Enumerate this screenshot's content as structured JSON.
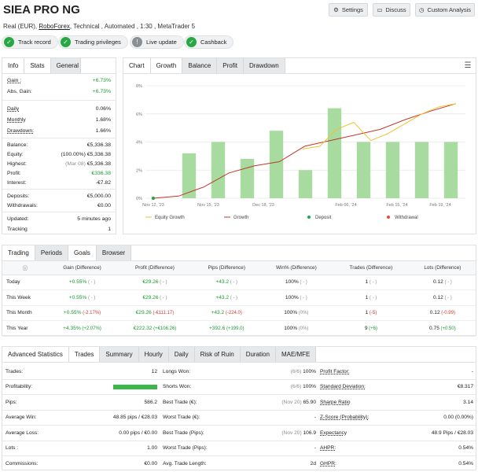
{
  "header": {
    "title": "SIEA PRO NG",
    "sub_pre": "Real (EUR), ",
    "broker": "RoboForex",
    "sub_post": ", Technical , Automated , 1:30 , MetaTrader 5",
    "settings": "Settings",
    "discuss": "Discuss",
    "custom": "Custom Analysis"
  },
  "badges": [
    "Track record",
    "Trading privileges",
    "Live update",
    "Cashback"
  ],
  "info_tabs": [
    "Info",
    "Stats",
    "General"
  ],
  "info": {
    "gain_l": "Gain :",
    "gain_v": "+6.73%",
    "absgain_l": "Abs. Gain:",
    "absgain_v": "+6.73%",
    "daily_l": "Daily",
    "daily_v": "0.06%",
    "monthly_l": "Monthly",
    "monthly_v": "1.68%",
    "drawdown_l": "Drawdown:",
    "drawdown_v": "1.66%",
    "balance_l": "Balance:",
    "balance_v": "€5,336.38",
    "equity_l": "Equity:",
    "equity_p": "(100.00%)",
    "equity_v": "€5,336.38",
    "highest_l": "Highest:",
    "highest_p": "(Mar 08)",
    "highest_v": "€5,336.38",
    "profit_l": "Profit:",
    "profit_v": "€336.38",
    "interest_l": "Interest:",
    "interest_v": "-€7.82",
    "deposits_l": "Deposits:",
    "deposits_v": "€5,000.00",
    "withdrawals_l": "Withdrawals:",
    "withdrawals_v": "€0.00",
    "updated_l": "Updated:",
    "updated_v": "5 minutes ago",
    "tracking_l": "Tracking",
    "tracking_v": "1"
  },
  "chart_tabs": [
    "Chart",
    "Growth",
    "Balance",
    "Profit",
    "Drawdown"
  ],
  "chart_data": {
    "type": "bar",
    "x_ticks": [
      "Nov 12, '23",
      "Nov 15, '23",
      "Dec 18, '23",
      "Feb 06, '24",
      "Feb 15, '24",
      "Feb 19, '24"
    ],
    "y_ticks": [
      "0%",
      "2%",
      "4%",
      "6%",
      "8%"
    ],
    "ylim": [
      0,
      8
    ],
    "bars": [
      0,
      3.2,
      4.0,
      2.8,
      4.8,
      2.0,
      6.4,
      4.0,
      4.0,
      4.0,
      4.0
    ],
    "growth": [
      0,
      0.15,
      0.8,
      1.8,
      2.3,
      2.6,
      3.7,
      4.1,
      4.5,
      4.9,
      5.6,
      6.2,
      6.73
    ],
    "equity_growth": [
      3.5,
      3.7,
      4.9,
      5.4,
      4.1,
      4.6,
      5.3,
      6.0,
      6.5,
      6.73
    ],
    "legend": [
      "Equity Growth",
      "Growth",
      "Deposit",
      "Withdrawal"
    ],
    "colors": {
      "bar": "#a8dba0",
      "growth": "#c0392b",
      "equity": "#f2c230",
      "deposit": "#27a844",
      "withdrawal": "#e74c3c"
    }
  },
  "period_tabs": [
    "Trading",
    "Periods",
    "Goals",
    "Browser"
  ],
  "periods": {
    "headers": [
      "Gain (Difference)",
      "Profit (Difference)",
      "Pips (Difference)",
      "Win% (Difference)",
      "Trades (Difference)",
      "Lots (Difference)"
    ],
    "rows": [
      {
        "name": "Today",
        "gain": "+0.55%",
        "gain_d": "( - )",
        "profit": "€29.26",
        "profit_d": "( - )",
        "pips": "+43.2",
        "pips_d": "( - )",
        "win": "100%",
        "win_d": "( - )",
        "trades": "1",
        "trades_d": "( - )",
        "lots": "0.12",
        "lots_d": "( - )"
      },
      {
        "name": "This Week",
        "gain": "+0.55%",
        "gain_d": "( - )",
        "profit": "€29.26",
        "profit_d": "( - )",
        "pips": "+43.2",
        "pips_d": "( - )",
        "win": "100%",
        "win_d": "( - )",
        "trades": "1",
        "trades_d": "( - )",
        "lots": "0.12",
        "lots_d": "( - )"
      },
      {
        "name": "This Month",
        "gain": "+0.55%",
        "gain_d": "(-2.17%)",
        "profit": "€29.26",
        "profit_d": "(-€111.17)",
        "pips": "+43.2",
        "pips_d": "(-224.0)",
        "win": "100%",
        "win_d": "(0%)",
        "trades": "1",
        "trades_d": "(-5)",
        "lots": "0.12",
        "lots_d": "(-0.99)"
      },
      {
        "name": "This Year",
        "gain": "+4.35%",
        "gain_d": "(+2.07%)",
        "profit": "€222.32",
        "profit_d": "(+€106.26)",
        "pips": "+392.6",
        "pips_d": "(+199.0)",
        "win": "100%",
        "win_d": "(0%)",
        "trades": "9",
        "trades_d": "(+6)",
        "lots": "0.75",
        "lots_d": "(+0.50)"
      }
    ]
  },
  "adv_tabs": [
    "Advanced Statistics",
    "Trades",
    "Summary",
    "Hourly",
    "Daily",
    "Risk of Ruin",
    "Duration",
    "MAE/MFE"
  ],
  "adv": {
    "col1": [
      {
        "l": "Trades:",
        "v": "12"
      },
      {
        "l": "Profitability:",
        "v": ""
      },
      {
        "l": "Pips:",
        "v": "586.2"
      },
      {
        "l": "Average Win:",
        "v": "48.85 pips / €28.03"
      },
      {
        "l": "Average Loss:",
        "v": "0.00 pips / €0.00"
      },
      {
        "l": "Lots :",
        "v": "1.00"
      },
      {
        "l": "Commissions:",
        "v": "€0.00"
      }
    ],
    "col2": [
      {
        "l": "Longs Won:",
        "p": "(6/6)",
        "v": "100%"
      },
      {
        "l": "Shorts Won:",
        "p": "(6/6)",
        "v": "100%"
      },
      {
        "l": "Best Trade (€):",
        "p": "(Nov 20)",
        "v": "65.90"
      },
      {
        "l": "Worst Trade (€):",
        "p": "",
        "v": "-"
      },
      {
        "l": "Best Trade (Pips):",
        "p": "(Nov 20)",
        "v": "106.9"
      },
      {
        "l": "Worst Trade (Pips):",
        "p": "",
        "v": "-"
      },
      {
        "l": "Avg. Trade Length:",
        "p": "",
        "v": "2d"
      }
    ],
    "col3": [
      {
        "l": "Profit Factor:",
        "v": "-"
      },
      {
        "l": "Standard Deviation:",
        "v": "€8.317"
      },
      {
        "l": "Sharpe Ratio",
        "v": "3.14"
      },
      {
        "l": "Z-Score (Probability):",
        "v": "0.00 (0.00%)"
      },
      {
        "l": "Expectancy",
        "v": "48.9 Pips / €28.03"
      },
      {
        "l": "AHPR:",
        "v": "0.54%"
      },
      {
        "l": "GHPR:",
        "v": "0.54%"
      }
    ],
    "profitability_pct": 100
  }
}
